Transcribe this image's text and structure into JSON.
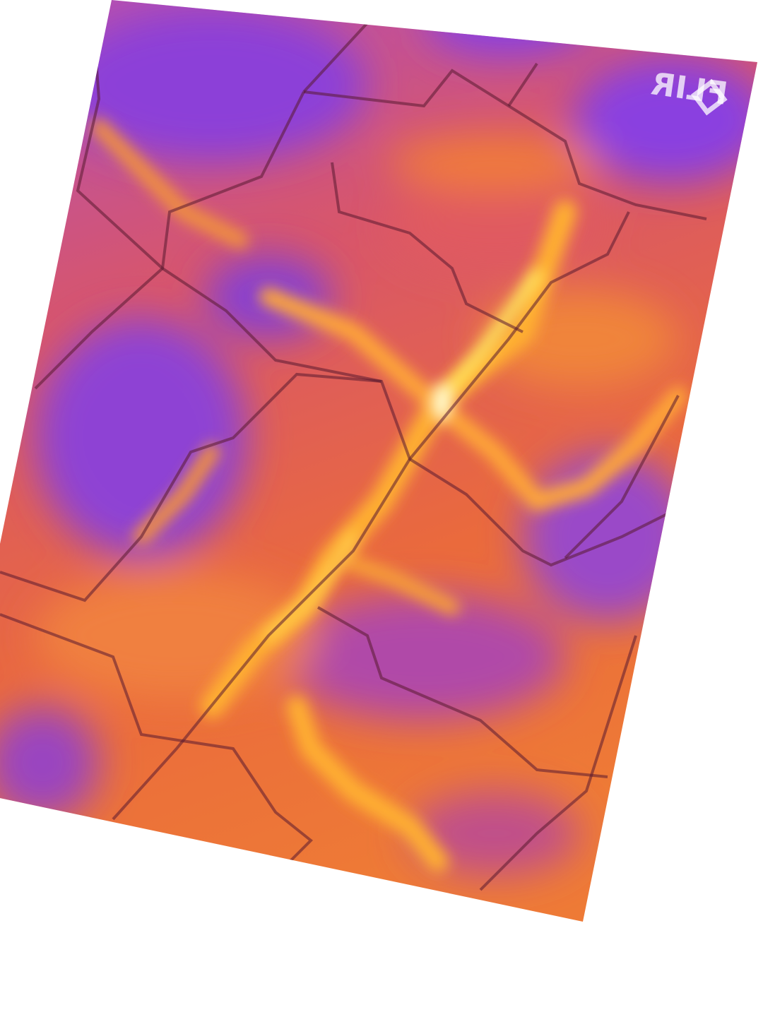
{
  "logo": "FLIR"
}
